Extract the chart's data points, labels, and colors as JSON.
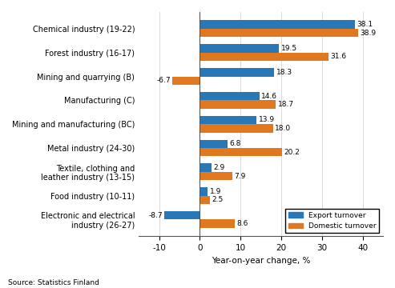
{
  "categories": [
    "Chemical industry (19-22)",
    "Forest industry (16-17)",
    "Mining and quarrying (B)",
    "Manufacturing (C)",
    "Mining and manufacturing (BC)",
    "Metal industry (24-30)",
    "Textile, clothing and\nleather industry (13-15)",
    "Food industry (10-11)",
    "Electronic and electrical\nindustry (26-27)"
  ],
  "export_turnover": [
    38.1,
    19.5,
    18.3,
    14.6,
    13.9,
    6.8,
    2.9,
    1.9,
    -8.7
  ],
  "domestic_turnover": [
    38.9,
    31.6,
    -6.7,
    18.7,
    18.0,
    20.2,
    7.9,
    2.5,
    8.6
  ],
  "export_color": "#2878b8",
  "domestic_color": "#E07820",
  "xlabel": "Year-on-year change, %",
  "xlim": [
    -15,
    45
  ],
  "xticks": [
    -10,
    0,
    10,
    20,
    30,
    40
  ],
  "legend_export": "Export turnover",
  "legend_domestic": "Domestic turnover",
  "source": "Source: Statistics Finland",
  "bar_height": 0.35,
  "figsize": [
    4.93,
    3.6
  ],
  "dpi": 100
}
